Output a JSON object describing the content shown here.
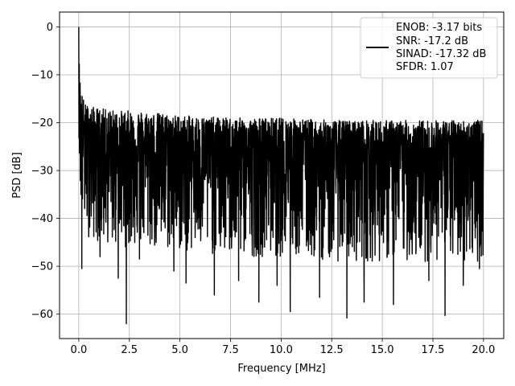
{
  "chart_data": {
    "type": "line",
    "title": "",
    "xlabel": "Frequency [MHz]",
    "ylabel": "PSD [dB]",
    "xlim": [
      -0.95,
      21.0
    ],
    "ylim": [
      -65.1,
      3.1
    ],
    "grid": true,
    "legend_placement": "top-right",
    "x_ticks": [
      0,
      2.5,
      5,
      7.5,
      10,
      12.5,
      15,
      17.5,
      20
    ],
    "x_tick_labels": [
      "0.0",
      "2.5",
      "5.0",
      "7.5",
      "10.0",
      "12.5",
      "15.0",
      "17.5",
      "20.0"
    ],
    "y_ticks": [
      0,
      -10,
      -20,
      -30,
      -40,
      -50,
      -60
    ],
    "y_tick_labels": [
      "0",
      "−10",
      "−20",
      "−30",
      "−40",
      "−50",
      "−60"
    ],
    "line_color": "#000000",
    "legend": {
      "lines": [
        "ENOB: -3.17 bits",
        "SNR: -17.2 dB",
        "SINAD: -17.32 dB",
        "SFDR: 1.07"
      ]
    },
    "series": [
      {
        "x_range": [
          0,
          20
        ],
        "envelope": {
          "x": [
            0.0,
            0.02,
            0.05,
            0.1,
            0.2,
            0.3,
            0.5,
            1.0,
            2.0,
            3.0,
            4.0,
            5.0,
            7.5,
            10.0,
            12.5,
            15.0,
            17.5,
            20.0
          ],
          "top": [
            0.0,
            -7.0,
            -10.0,
            -12.5,
            -14.5,
            -16.0,
            -16.5,
            -17.0,
            -17.5,
            -17.5,
            -18.0,
            -18.5,
            -19.0,
            -19.0,
            -19.5,
            -19.5,
            -19.5,
            -19.5
          ],
          "base": [
            0.0,
            -10.0,
            -15.0,
            -20.0,
            -22.0,
            -23.0,
            -24.0,
            -25.0,
            -25.5,
            -25.5,
            -26.0,
            -26.0,
            -26.5,
            -26.5,
            -27.0,
            -27.0,
            -27.0,
            -27.0
          ],
          "floor": [
            -20.0,
            -28.0,
            -34.0,
            -38.0,
            -40.0,
            -42.0,
            -44.0,
            -45.0,
            -46.0,
            -46.0,
            -47.0,
            -47.0,
            -48.0,
            -48.0,
            -49.0,
            -49.0,
            -49.0,
            -49.0
          ]
        },
        "notable_points": [
          {
            "x": 0.0,
            "y": 0.0
          },
          {
            "x": 0.15,
            "y": -50.5
          },
          {
            "x": 1.05,
            "y": -48.0
          },
          {
            "x": 1.95,
            "y": -52.5
          },
          {
            "x": 2.35,
            "y": -62.0
          },
          {
            "x": 3.0,
            "y": -48.5
          },
          {
            "x": 4.7,
            "y": -51.0
          },
          {
            "x": 5.3,
            "y": -53.5
          },
          {
            "x": 6.7,
            "y": -56.0
          },
          {
            "x": 7.9,
            "y": -53.0
          },
          {
            "x": 8.9,
            "y": -57.5
          },
          {
            "x": 9.8,
            "y": -54.0
          },
          {
            "x": 10.45,
            "y": -59.5
          },
          {
            "x": 11.9,
            "y": -56.5
          },
          {
            "x": 13.25,
            "y": -60.8
          },
          {
            "x": 14.1,
            "y": -57.5
          },
          {
            "x": 15.55,
            "y": -58.0
          },
          {
            "x": 17.3,
            "y": -53.0
          },
          {
            "x": 18.1,
            "y": -60.3
          },
          {
            "x": 19.0,
            "y": -54.0
          },
          {
            "x": 19.8,
            "y": -50.5
          }
        ]
      }
    ]
  }
}
